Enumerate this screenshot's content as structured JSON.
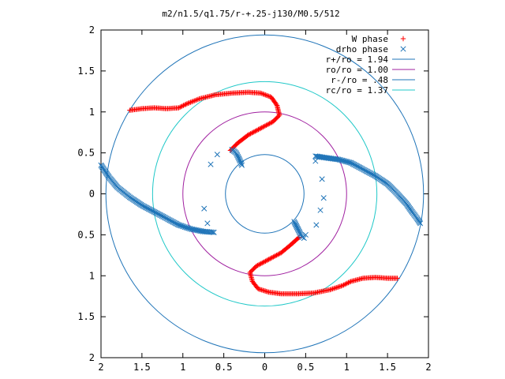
{
  "chart_data": {
    "type": "scatter",
    "title": "m2/n1.5/q1.75/r-+.25-j130/M0.5/512",
    "xlim": [
      -2,
      2
    ],
    "ylim": [
      -2,
      2
    ],
    "x_ticks": [
      {
        "value": -2,
        "label": "2"
      },
      {
        "value": -1.5,
        "label": "1.5"
      },
      {
        "value": -1,
        "label": "1"
      },
      {
        "value": -0.5,
        "label": "0.5"
      },
      {
        "value": 0,
        "label": "0"
      },
      {
        "value": 0.5,
        "label": "0.5"
      },
      {
        "value": 1,
        "label": "1"
      },
      {
        "value": 1.5,
        "label": "1.5"
      },
      {
        "value": 2,
        "label": "2"
      }
    ],
    "y_ticks": [
      {
        "value": 2,
        "label": "2"
      },
      {
        "value": 1.5,
        "label": "1.5"
      },
      {
        "value": 1,
        "label": "1"
      },
      {
        "value": 0.5,
        "label": "0.5"
      },
      {
        "value": 0,
        "label": "0"
      },
      {
        "value": -0.5,
        "label": "0.5"
      },
      {
        "value": -1,
        "label": "1"
      },
      {
        "value": -1.5,
        "label": "1.5"
      },
      {
        "value": -2,
        "label": "2"
      }
    ],
    "legend_position": "top-right",
    "circles": [
      {
        "label": "r+/ro = 1.94",
        "radius": 1.94,
        "color": "#1f74b8"
      },
      {
        "label": "ro/ro = 1.00",
        "radius": 1.0,
        "color": "#a020a0"
      },
      {
        "label": "r-/ro = .48",
        "radius": 0.48,
        "color": "#1f74b8"
      },
      {
        "label": "rc/ro = 1.37",
        "radius": 1.37,
        "color": "#20c8c8"
      }
    ],
    "series": [
      {
        "name": "W phase",
        "marker": "plus",
        "color": "#ff0000",
        "arms": [
          [
            [
              -1.65,
              1.02
            ],
            [
              -1.5,
              1.04
            ],
            [
              -1.35,
              1.05
            ],
            [
              -1.2,
              1.04
            ],
            [
              -1.05,
              1.05
            ],
            [
              -0.95,
              1.1
            ],
            [
              -0.8,
              1.16
            ],
            [
              -0.6,
              1.21
            ],
            [
              -0.4,
              1.23
            ],
            [
              -0.2,
              1.24
            ],
            [
              -0.05,
              1.23
            ],
            [
              0.08,
              1.18
            ],
            [
              0.15,
              1.08
            ],
            [
              0.18,
              0.96
            ],
            [
              0.1,
              0.88
            ],
            [
              -0.05,
              0.8
            ],
            [
              -0.2,
              0.72
            ],
            [
              -0.33,
              0.62
            ],
            [
              -0.42,
              0.53
            ]
          ],
          [
            [
              1.62,
              -1.03
            ],
            [
              1.5,
              -1.03
            ],
            [
              1.35,
              -1.02
            ],
            [
              1.2,
              -1.03
            ],
            [
              1.05,
              -1.07
            ],
            [
              0.95,
              -1.12
            ],
            [
              0.8,
              -1.17
            ],
            [
              0.6,
              -1.21
            ],
            [
              0.4,
              -1.22
            ],
            [
              0.2,
              -1.22
            ],
            [
              0.05,
              -1.2
            ],
            [
              -0.08,
              -1.16
            ],
            [
              -0.15,
              -1.07
            ],
            [
              -0.18,
              -0.96
            ],
            [
              -0.1,
              -0.88
            ],
            [
              0.05,
              -0.8
            ],
            [
              0.2,
              -0.72
            ],
            [
              0.32,
              -0.62
            ],
            [
              0.42,
              -0.53
            ]
          ]
        ]
      },
      {
        "name": "drho phase",
        "marker": "cross",
        "color": "#1f74b8",
        "arms": [
          [
            [
              0.62,
              0.46
            ],
            [
              0.75,
              0.44
            ],
            [
              0.9,
              0.42
            ],
            [
              1.05,
              0.38
            ],
            [
              1.2,
              0.3
            ],
            [
              1.35,
              0.22
            ],
            [
              1.5,
              0.12
            ],
            [
              1.62,
              0.0
            ],
            [
              1.73,
              -0.12
            ],
            [
              1.8,
              -0.22
            ],
            [
              1.86,
              -0.3
            ],
            [
              1.9,
              -0.36
            ]
          ],
          [
            [
              -0.4,
              0.54
            ],
            [
              -0.35,
              0.5
            ],
            [
              -0.32,
              0.44
            ],
            [
              -0.3,
              0.4
            ],
            [
              -0.28,
              0.35
            ]
          ],
          [
            [
              -2.0,
              0.35
            ],
            [
              -1.9,
              0.2
            ],
            [
              -1.8,
              0.08
            ],
            [
              -1.65,
              -0.04
            ],
            [
              -1.5,
              -0.14
            ],
            [
              -1.35,
              -0.22
            ],
            [
              -1.2,
              -0.3
            ],
            [
              -1.05,
              -0.38
            ],
            [
              -0.9,
              -0.43
            ],
            [
              -0.75,
              -0.46
            ],
            [
              -0.62,
              -0.47
            ]
          ],
          [
            [
              0.36,
              -0.34
            ],
            [
              0.38,
              -0.38
            ],
            [
              0.4,
              -0.42
            ],
            [
              0.42,
              -0.46
            ],
            [
              0.44,
              -0.5
            ],
            [
              0.46,
              -0.53
            ],
            [
              0.48,
              -0.54
            ]
          ],
          [
            [
              0.63,
              -0.38
            ],
            [
              0.5,
              -0.5
            ],
            [
              0.68,
              -0.2
            ],
            [
              0.62,
              0.4
            ],
            [
              0.7,
              0.18
            ],
            [
              0.72,
              -0.05
            ]
          ],
          [
            [
              -0.58,
              0.48
            ],
            [
              -0.66,
              0.36
            ],
            [
              -0.74,
              -0.18
            ],
            [
              -0.7,
              -0.36
            ]
          ]
        ]
      }
    ]
  }
}
